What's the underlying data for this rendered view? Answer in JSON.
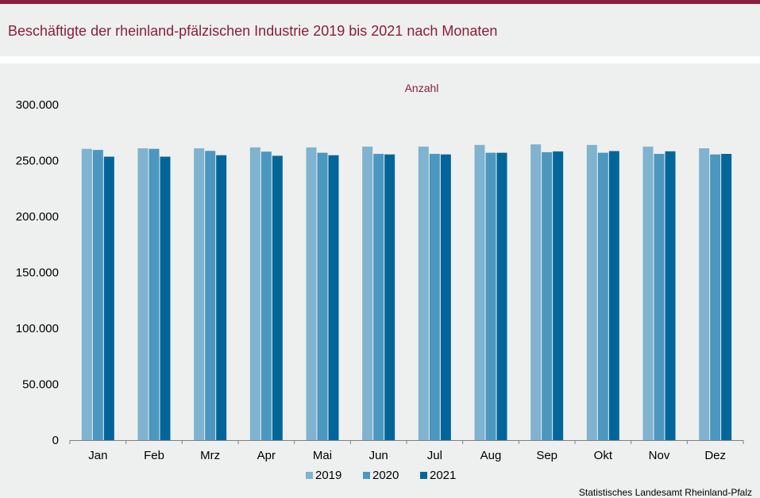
{
  "title": "Beschäftigte der rheinland-pfälzischen Industrie 2019 bis 2021 nach Monaten",
  "source": "Statistisches Landesamt  Rheinland-Pfalz",
  "colors": {
    "accent": "#8c1d3c",
    "s2019": "#7fb3cf",
    "s2020": "#4b97c0",
    "s2021": "#00669a"
  },
  "chart_data": {
    "type": "bar",
    "title": "Beschäftigte der rheinland-pfälzischen Industrie 2019 bis 2021 nach Monaten",
    "ylabel": "Anzahl",
    "xlabel": "",
    "ylim": [
      0,
      300000
    ],
    "yticks": [
      0,
      50000,
      100000,
      150000,
      200000,
      250000,
      300000
    ],
    "ytick_labels": [
      "0",
      "50.000",
      "100.000",
      "150.000",
      "200.000",
      "250.000",
      "300.000"
    ],
    "categories": [
      "Jan",
      "Feb",
      "Mrz",
      "Apr",
      "Mai",
      "Jun",
      "Jul",
      "Aug",
      "Sep",
      "Okt",
      "Nov",
      "Dez"
    ],
    "legend_position": "bottom-center",
    "grid": false,
    "series": [
      {
        "name": "2019",
        "values": [
          260500,
          261000,
          261000,
          261800,
          261800,
          262500,
          262500,
          264000,
          264500,
          264000,
          262500,
          261000
        ]
      },
      {
        "name": "2020",
        "values": [
          259500,
          260500,
          258700,
          258000,
          257000,
          256000,
          256000,
          257000,
          257500,
          257000,
          256000,
          255500
        ]
      },
      {
        "name": "2021",
        "values": [
          253500,
          253500,
          254800,
          254300,
          254800,
          255500,
          255500,
          257000,
          258200,
          258500,
          258300,
          256000
        ]
      }
    ]
  }
}
